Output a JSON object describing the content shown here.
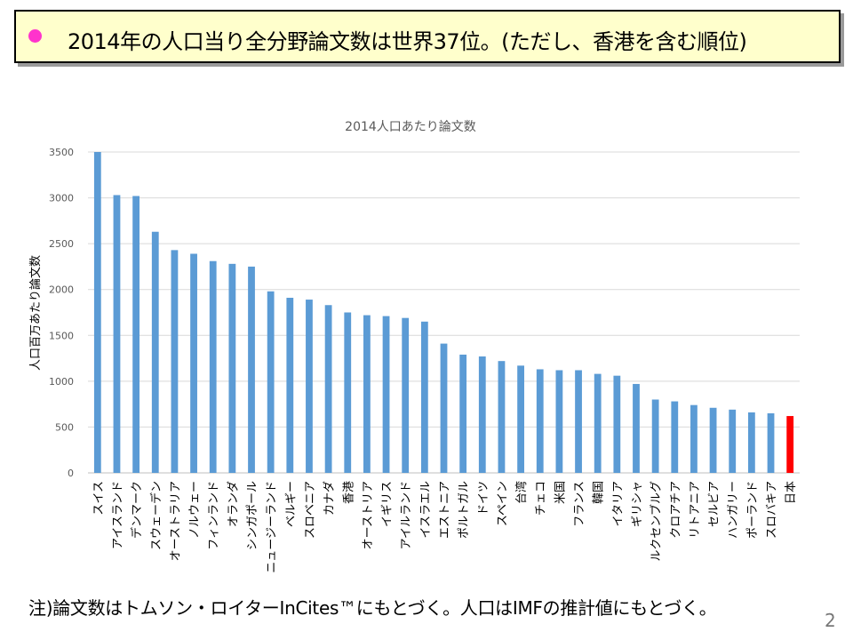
{
  "header": {
    "title": "2014年の人口当り全分野論文数は世界37位。(ただし、香港を含む順位)",
    "bullet_color": "#ff33cc"
  },
  "chart_data": {
    "type": "bar",
    "title": "2014人口あたり論文数",
    "xlabel": "",
    "ylabel": "人口百万あたり論文数",
    "ylim": [
      0,
      3500
    ],
    "yticks": [
      0,
      500,
      1000,
      1500,
      2000,
      2500,
      3000,
      3500
    ],
    "grid": true,
    "legend": "none",
    "bar_color": "#5b9bd5",
    "highlight_color": "#ff0000",
    "highlight_category": "日本",
    "categories": [
      "スイス",
      "アイスランド",
      "デンマーク",
      "スウェーデン",
      "オーストラリア",
      "ノルウェー",
      "フィンランド",
      "オランダ",
      "シンガポール",
      "ニュージーランド",
      "ベルギー",
      "スロベニア",
      "カナダ",
      "香港",
      "オーストリア",
      "イギリス",
      "アイルランド",
      "イスラエル",
      "エストニア",
      "ポルトガル",
      "ドイツ",
      "スペイン",
      "台湾",
      "チェコ",
      "米国",
      "フランス",
      "韓国",
      "イタリア",
      "ギリシャ",
      "ルクセンブルグ",
      "クロアチア",
      "リトアニア",
      "セルビア",
      "ハンガリー",
      "ポーランド",
      "スロバキア",
      "日本"
    ],
    "values": [
      3500,
      3030,
      3020,
      2630,
      2430,
      2390,
      2310,
      2280,
      2250,
      1980,
      1910,
      1890,
      1830,
      1750,
      1720,
      1710,
      1690,
      1650,
      1410,
      1290,
      1270,
      1220,
      1170,
      1130,
      1120,
      1120,
      1080,
      1060,
      970,
      800,
      780,
      740,
      710,
      690,
      660,
      650,
      620
    ]
  },
  "footer": {
    "note": "注)論文数はトムソン・ロイターInCites™にもとづく。人口はIMFの推計値にもとづく。",
    "page_number": "2"
  }
}
